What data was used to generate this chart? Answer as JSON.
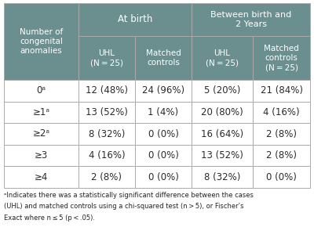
{
  "header_bg": "#6b8f8f",
  "header_text_color": "#ffffff",
  "border_color": "#aaaaaa",
  "col0_header": "Number of\ncongenital\nanomalies",
  "group1_header": "At birth",
  "group2_header": "Between birth and\n2 Years",
  "col_headers": [
    "UHL\n(N = 25)",
    "Matched\ncontrols",
    "UHL\n(N = 25)",
    "Matched\ncontrols\n(N = 25)"
  ],
  "row_labels": [
    "0ᵃ",
    "≥1ᵃ",
    "≥2ᵃ",
    "≥3",
    "≥4"
  ],
  "data": [
    [
      "12 (48%)",
      "24 (96%)",
      "5 (20%)",
      "21 (84%)"
    ],
    [
      "13 (52%)",
      "1 (4%)",
      "20 (80%)",
      "4 (16%)"
    ],
    [
      "8 (32%)",
      "0 (0%)",
      "16 (64%)",
      "2 (8%)"
    ],
    [
      "4 (16%)",
      "0 (0%)",
      "13 (52%)",
      "2 (8%)"
    ],
    [
      "2 (8%)",
      "0 (0%)",
      "8 (32%)",
      "0 (0%)"
    ]
  ],
  "footnote_lines": [
    "ᵃIndicates there was a statistically significant difference between the cases",
    "(UHL) and matched controls using a chi-squared test (n > 5), or Fischer’s",
    "Exact where n ≤ 5 (p < .05)."
  ],
  "fig_width": 4.0,
  "fig_height": 3.04,
  "dpi": 100
}
